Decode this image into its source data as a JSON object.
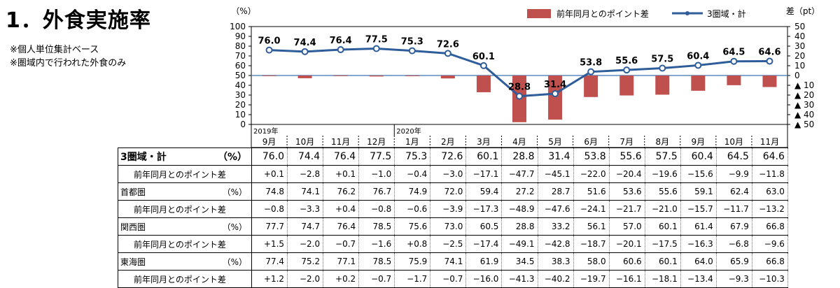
{
  "page": {
    "heading": "1．外食実施率",
    "notes": [
      "※個人単位集計ベース",
      "※圏域内で行われた外食のみ"
    ]
  },
  "chart_data": {
    "type": "bar+line",
    "categories": [
      "9月",
      "10月",
      "11月",
      "12月",
      "1月",
      "2月",
      "3月",
      "4月",
      "5月",
      "6月",
      "7月",
      "8月",
      "9月",
      "10月",
      "11月"
    ],
    "year_labels": [
      {
        "label": "2019年",
        "start_index": 0
      },
      {
        "label": "2020年",
        "start_index": 4
      }
    ],
    "y_left": {
      "unit": "（%）",
      "min": 0,
      "max": 100,
      "ticks": [
        0,
        10,
        20,
        30,
        40,
        50,
        60,
        70,
        80,
        90,
        100
      ]
    },
    "y_right": {
      "unit": "差（pt）",
      "min": -50,
      "max": 50,
      "ticks": [
        "50",
        "40",
        "30",
        "20",
        "10",
        "0",
        "▲ 10",
        "▲ 20",
        "▲ 30",
        "▲ 40",
        "▲ 50"
      ]
    },
    "legend": [
      "前年同月とのポイント差",
      "3圏域・計"
    ],
    "legend_position": "top-right",
    "colors": {
      "bar": "#C0504D",
      "line": "#2E5D9A",
      "zero_line": "#5B8CC0"
    },
    "series": [
      {
        "name": "3圏域・計",
        "type": "line",
        "axis": "left",
        "values": [
          76.0,
          74.4,
          76.4,
          77.5,
          75.3,
          72.6,
          60.1,
          28.8,
          31.4,
          53.8,
          55.6,
          57.5,
          60.4,
          64.5,
          64.6
        ]
      },
      {
        "name": "前年同月とのポイント差",
        "type": "bar",
        "axis": "right",
        "values": [
          0.1,
          -2.8,
          0.1,
          -1.0,
          -0.4,
          -3.0,
          -17.1,
          -47.7,
          -45.1,
          -22.0,
          -20.4,
          -19.6,
          -15.6,
          -9.9,
          -11.8
        ]
      }
    ]
  },
  "table": {
    "rows": [
      {
        "label": "3圏域・計",
        "unit": "（%）",
        "kind": "main",
        "values": [
          "76.0",
          "74.4",
          "76.4",
          "77.5",
          "75.3",
          "72.6",
          "60.1",
          "28.8",
          "31.4",
          "53.8",
          "55.6",
          "57.5",
          "60.4",
          "64.5",
          "64.6"
        ]
      },
      {
        "label": "前年同月とのポイント差",
        "unit": "",
        "kind": "sub",
        "values": [
          "+0.1",
          "−2.8",
          "+0.1",
          "−1.0",
          "−0.4",
          "−3.0",
          "−17.1",
          "−47.7",
          "−45.1",
          "−22.0",
          "−20.4",
          "−19.6",
          "−15.6",
          "−9.9",
          "−11.8"
        ]
      },
      {
        "label": "首都圏",
        "unit": "（%）",
        "kind": "region",
        "values": [
          "74.8",
          "74.1",
          "76.2",
          "76.7",
          "74.9",
          "72.0",
          "59.4",
          "27.2",
          "28.7",
          "51.6",
          "53.6",
          "55.6",
          "59.1",
          "62.4",
          "63.0"
        ]
      },
      {
        "label": "前年同月とのポイント差",
        "unit": "",
        "kind": "sub",
        "values": [
          "−0.8",
          "−3.3",
          "+0.4",
          "−0.8",
          "−0.6",
          "−3.9",
          "−17.3",
          "−48.9",
          "−47.6",
          "−24.1",
          "−21.7",
          "−21.0",
          "−15.7",
          "−11.7",
          "−13.2"
        ]
      },
      {
        "label": "関西圏",
        "unit": "（%）",
        "kind": "region",
        "values": [
          "77.7",
          "74.7",
          "76.4",
          "78.5",
          "75.6",
          "73.0",
          "60.5",
          "28.8",
          "33.2",
          "56.1",
          "57.0",
          "60.1",
          "61.4",
          "67.9",
          "66.8"
        ]
      },
      {
        "label": "前年同月とのポイント差",
        "unit": "",
        "kind": "sub",
        "values": [
          "+1.5",
          "−2.0",
          "−0.7",
          "−1.6",
          "+0.8",
          "−2.5",
          "−17.4",
          "−49.1",
          "−42.8",
          "−18.7",
          "−20.1",
          "−17.5",
          "−16.3",
          "−6.8",
          "−9.6"
        ]
      },
      {
        "label": "東海圏",
        "unit": "（%）",
        "kind": "region",
        "values": [
          "77.4",
          "75.2",
          "77.1",
          "78.5",
          "75.9",
          "74.1",
          "61.9",
          "34.5",
          "38.3",
          "58.0",
          "60.6",
          "60.1",
          "64.0",
          "65.9",
          "66.8"
        ]
      },
      {
        "label": "前年同月とのポイント差",
        "unit": "",
        "kind": "sub",
        "values": [
          "+1.2",
          "−2.0",
          "+0.2",
          "−0.7",
          "−1.7",
          "−0.7",
          "−16.0",
          "−41.3",
          "−40.2",
          "−19.7",
          "−16.1",
          "−18.1",
          "−13.4",
          "−9.3",
          "−10.3"
        ]
      }
    ]
  }
}
